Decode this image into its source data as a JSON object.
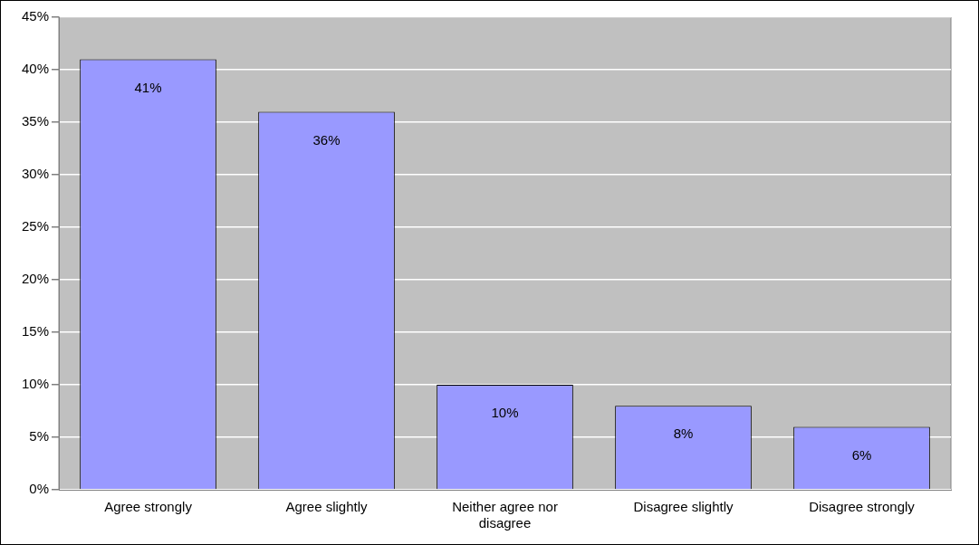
{
  "chart_data": {
    "type": "bar",
    "categories": [
      "Agree strongly",
      "Agree slightly",
      "Neither agree nor disagree",
      "Disagree slightly",
      "Disagree strongly"
    ],
    "values": [
      41,
      36,
      10,
      8,
      6
    ],
    "color": "#9999ff",
    "ylim": [
      0,
      45
    ],
    "yticks": [
      {
        "value": 0,
        "label": "0%"
      },
      {
        "value": 5,
        "label": "5%"
      },
      {
        "value": 10,
        "label": "10%"
      },
      {
        "value": 15,
        "label": "15%"
      },
      {
        "value": 20,
        "label": "20%"
      },
      {
        "value": 25,
        "label": "25%"
      },
      {
        "value": 30,
        "label": "30%"
      },
      {
        "value": 35,
        "label": "35%"
      },
      {
        "value": 40,
        "label": "40%"
      },
      {
        "value": 45,
        "label": "45%"
      }
    ],
    "grid": "y",
    "legend": false,
    "value_labels": [
      "41%",
      "36%",
      "10%",
      "8%",
      "6%"
    ]
  }
}
